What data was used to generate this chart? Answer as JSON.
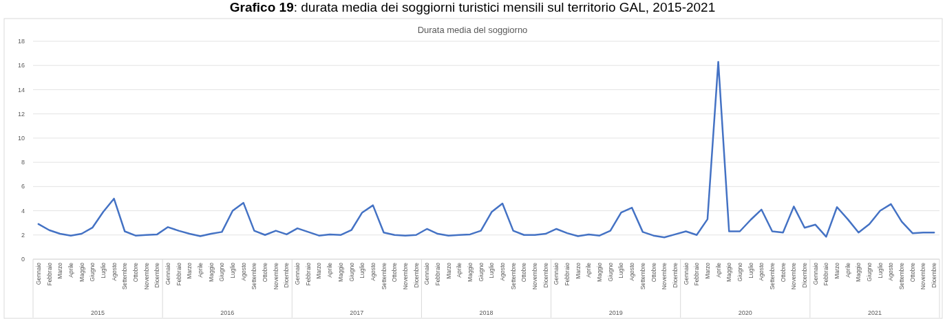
{
  "chart_data": {
    "type": "line",
    "title": "Grafico 19: durata media dei soggiorni turistici mensili sul territorio GAL, 2015-2021",
    "subtitle": "Durata media del soggiorno",
    "categories": [
      "Gennaio",
      "Febbraio",
      "Marzo",
      "Aprile",
      "Maggio",
      "Giugno",
      "Luglio",
      "Agosto",
      "Settembre",
      "Ottobre",
      "Novembre",
      "Dicembre",
      "Gennaio",
      "Febbraio",
      "Marzo",
      "Aprile",
      "Maggio",
      "Giugno",
      "Luglio",
      "Agosto",
      "Settembre",
      "Ottobre",
      "Novembre",
      "Dicembre",
      "Gennaio",
      "Febbraio",
      "Marzo",
      "Aprile",
      "Maggio",
      "Giugno",
      "Luglio",
      "Agosto",
      "Settembre",
      "Ottobre",
      "Novembre",
      "Dicembre",
      "Gennaio",
      "Febbraio",
      "Marzo",
      "Aprile",
      "Maggio",
      "Giugno",
      "Luglio",
      "Agosto",
      "Settembre",
      "Ottobre",
      "Novembre",
      "Dicembre",
      "Gennaio",
      "Febbraio",
      "Marzo",
      "Aprile",
      "Maggio",
      "Giugno",
      "Luglio",
      "Agosto",
      "Settembre",
      "Ottobre",
      "Novembre",
      "Dicembre",
      "Gennaio",
      "Febbraio",
      "Marzo",
      "Aprile",
      "Maggio",
      "Giugno",
      "Luglio",
      "Agosto",
      "Settembre",
      "Ottobre",
      "Novembre",
      "Dicembre",
      "Gennaio",
      "Febbraio",
      "Marzo",
      "Aprile",
      "Maggio",
      "Giugno",
      "Luglio",
      "Agosto",
      "Settembre",
      "Ottobre",
      "Novembre",
      "Dicembre"
    ],
    "series": [
      {
        "color": "#4472c4",
        "values": [
          2.9,
          2.4,
          2.1,
          1.95,
          2.1,
          2.6,
          3.9,
          5.0,
          2.3,
          1.95,
          2.0,
          2.05,
          2.65,
          2.35,
          2.1,
          1.9,
          2.1,
          2.25,
          4.0,
          4.65,
          2.35,
          2.0,
          2.35,
          2.05,
          2.55,
          2.25,
          1.95,
          2.05,
          2.0,
          2.4,
          3.85,
          4.45,
          2.2,
          2.0,
          1.95,
          2.0,
          2.5,
          2.1,
          1.95,
          2.0,
          2.05,
          2.35,
          3.9,
          4.6,
          2.35,
          2.0,
          2.0,
          2.1,
          2.5,
          2.15,
          1.9,
          2.05,
          1.95,
          2.35,
          3.85,
          4.25,
          2.25,
          1.95,
          1.8,
          2.05,
          2.3,
          2.0,
          3.3,
          16.3,
          2.3,
          2.3,
          3.25,
          4.1,
          2.3,
          2.2,
          4.35,
          2.6,
          2.85,
          1.85,
          4.3,
          3.3,
          2.2,
          2.9,
          4.0,
          4.55,
          3.1,
          2.15,
          2.2,
          2.2
        ]
      }
    ],
    "annotations": [
      "2015",
      "2016",
      "2017",
      "2018",
      "2019",
      "2020",
      "2021"
    ],
    "ylim": [
      0,
      18
    ],
    "yticks": [
      0,
      2,
      4,
      6,
      8,
      10,
      12,
      14,
      16,
      18
    ],
    "grid": "y",
    "line_style": "solid",
    "marker": "none"
  }
}
